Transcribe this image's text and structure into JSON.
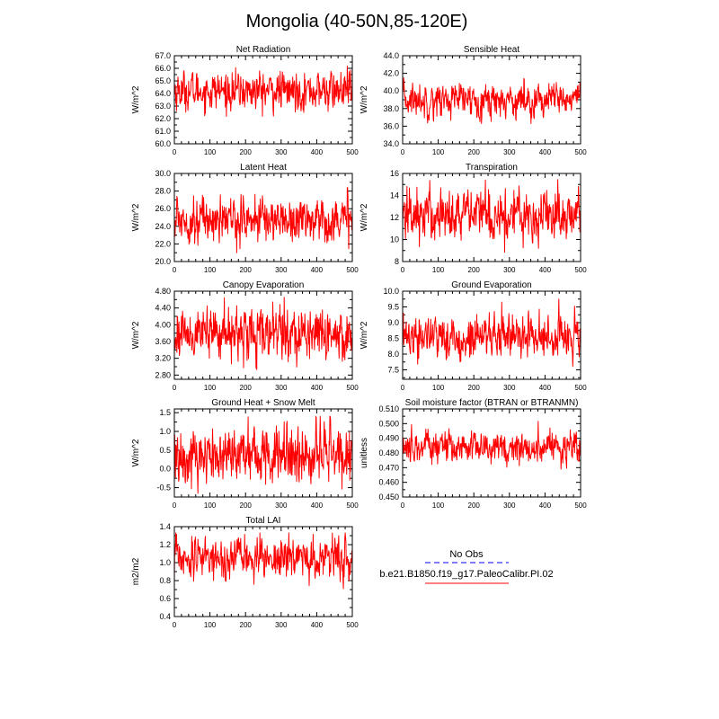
{
  "figure": {
    "title": "Mongolia (40-50N,85-120E)"
  },
  "chart_data": [
    {
      "type": "line",
      "title": "Net Radiation",
      "ylabel": "W/m^2",
      "ylim": [
        60.0,
        67.0
      ],
      "yticks": [
        "60.0",
        "61.0",
        "62.0",
        "63.0",
        "64.0",
        "65.0",
        "66.0",
        "67.0"
      ],
      "xlim": [
        0,
        500
      ],
      "xticks": [
        "0",
        "100",
        "200",
        "300",
        "400",
        "500"
      ],
      "series": [
        {
          "name": "b.e21.B1850.f19_g17.PaleoCalibr.PI.02",
          "color": "#ff0000",
          "n": 500,
          "mean": 64.2,
          "spread": 0.75,
          "min": 60.9,
          "max": 66.4
        }
      ]
    },
    {
      "type": "line",
      "title": "Sensible Heat",
      "ylabel": "W/m^2",
      "ylim": [
        34.0,
        44.0
      ],
      "yticks": [
        "34.0",
        "36.0",
        "38.0",
        "40.0",
        "42.0",
        "44.0"
      ],
      "xlim": [
        0,
        500
      ],
      "xticks": [
        "0",
        "100",
        "200",
        "300",
        "400",
        "500"
      ],
      "series": [
        {
          "name": "b.e21.B1850.f19_g17.PaleoCalibr.PI.02",
          "color": "#ff0000",
          "n": 500,
          "mean": 39.0,
          "spread": 0.95,
          "min": 36.3,
          "max": 42.9
        }
      ]
    },
    {
      "type": "line",
      "title": "Latent Heat",
      "ylabel": "W/m^2",
      "ylim": [
        20.0,
        30.0
      ],
      "yticks": [
        "20.0",
        "22.0",
        "24.0",
        "26.0",
        "28.0",
        "30.0"
      ],
      "xlim": [
        0,
        500
      ],
      "xticks": [
        "0",
        "100",
        "200",
        "300",
        "400",
        "500"
      ],
      "series": [
        {
          "name": "b.e21.B1850.f19_g17.PaleoCalibr.PI.02",
          "color": "#ff0000",
          "n": 500,
          "mean": 24.8,
          "spread": 1.25,
          "min": 20.1,
          "max": 28.4
        }
      ]
    },
    {
      "type": "line",
      "title": "Transpiration",
      "ylabel": "W/m^2",
      "ylim": [
        8,
        16
      ],
      "yticks": [
        "8",
        "10",
        "12",
        "14",
        "16"
      ],
      "xlim": [
        0,
        500
      ],
      "xticks": [
        "0",
        "100",
        "200",
        "300",
        "400",
        "500"
      ],
      "series": [
        {
          "name": "b.e21.B1850.f19_g17.PaleoCalibr.PI.02",
          "color": "#ff0000",
          "n": 500,
          "mean": 12.3,
          "spread": 1.2,
          "min": 8.2,
          "max": 15.6
        }
      ]
    },
    {
      "type": "line",
      "title": "Canopy Evaporation",
      "ylabel": "W/m^2",
      "ylim": [
        2.7,
        4.8
      ],
      "yticks": [
        "2.80",
        "3.20",
        "3.60",
        "4.00",
        "4.40",
        "4.80"
      ],
      "xlim": [
        0,
        500
      ],
      "xticks": [
        "0",
        "100",
        "200",
        "300",
        "400",
        "500"
      ],
      "series": [
        {
          "name": "b.e21.B1850.f19_g17.PaleoCalibr.PI.02",
          "color": "#ff0000",
          "n": 500,
          "mean": 3.8,
          "spread": 0.3,
          "min": 2.9,
          "max": 4.7
        }
      ]
    },
    {
      "type": "line",
      "title": "Ground Evaporation",
      "ylabel": "W/m^2",
      "ylim": [
        7.2,
        10.0
      ],
      "yticks": [
        "7.5",
        "8.0",
        "8.5",
        "9.0",
        "9.5",
        "10.0"
      ],
      "xlim": [
        0,
        500
      ],
      "xticks": [
        "0",
        "100",
        "200",
        "300",
        "400",
        "500"
      ],
      "series": [
        {
          "name": "b.e21.B1850.f19_g17.PaleoCalibr.PI.02",
          "color": "#ff0000",
          "n": 500,
          "mean": 8.55,
          "spread": 0.35,
          "min": 7.5,
          "max": 9.8
        }
      ]
    },
    {
      "type": "line",
      "title": "Ground Heat + Snow Melt",
      "ylabel": "W/m^2",
      "ylim": [
        -0.75,
        1.6
      ],
      "yticks": [
        "-0.5",
        "0.0",
        "0.5",
        "1.0",
        "1.5"
      ],
      "xlim": [
        0,
        500
      ],
      "xticks": [
        "0",
        "100",
        "200",
        "300",
        "400",
        "500"
      ],
      "series": [
        {
          "name": "b.e21.B1850.f19_g17.PaleoCalibr.PI.02",
          "color": "#ff0000",
          "n": 500,
          "mean": 0.38,
          "spread": 0.4,
          "min": -0.7,
          "max": 1.4
        }
      ]
    },
    {
      "type": "line",
      "title": "Soil moisture factor (BTRAN or BTRANMN)",
      "ylabel": "unitless",
      "ylim": [
        0.45,
        0.51
      ],
      "yticks": [
        "0.450",
        "0.460",
        "0.470",
        "0.480",
        "0.490",
        "0.500",
        "0.510"
      ],
      "xlim": [
        0,
        500
      ],
      "xticks": [
        "0",
        "100",
        "200",
        "300",
        "400",
        "500"
      ],
      "series": [
        {
          "name": "b.e21.B1850.f19_g17.PaleoCalibr.PI.02",
          "color": "#ff0000",
          "n": 500,
          "mean": 0.484,
          "spread": 0.0055,
          "min": 0.459,
          "max": 0.506
        }
      ]
    },
    {
      "type": "line",
      "title": "Total LAI",
      "ylabel": "m2/m2",
      "ylim": [
        0.4,
        1.4
      ],
      "yticks": [
        "0.4",
        "0.6",
        "0.8",
        "1.0",
        "1.2",
        "1.4"
      ],
      "xlim": [
        0,
        500
      ],
      "xticks": [
        "0",
        "100",
        "200",
        "300",
        "400",
        "500"
      ],
      "series": [
        {
          "name": "b.e21.B1850.f19_g17.PaleoCalibr.PI.02",
          "color": "#ff0000",
          "n": 500,
          "mean": 1.06,
          "spread": 0.11,
          "min": 0.55,
          "max": 1.33
        }
      ]
    }
  ],
  "legend": {
    "entries": [
      {
        "label": "No Obs",
        "color": "#0000ff",
        "style": "dashed"
      },
      {
        "label": "b.e21.B1850.f19_g17.PaleoCalibr.PI.02",
        "color": "#ff0000",
        "style": "solid"
      }
    ]
  }
}
